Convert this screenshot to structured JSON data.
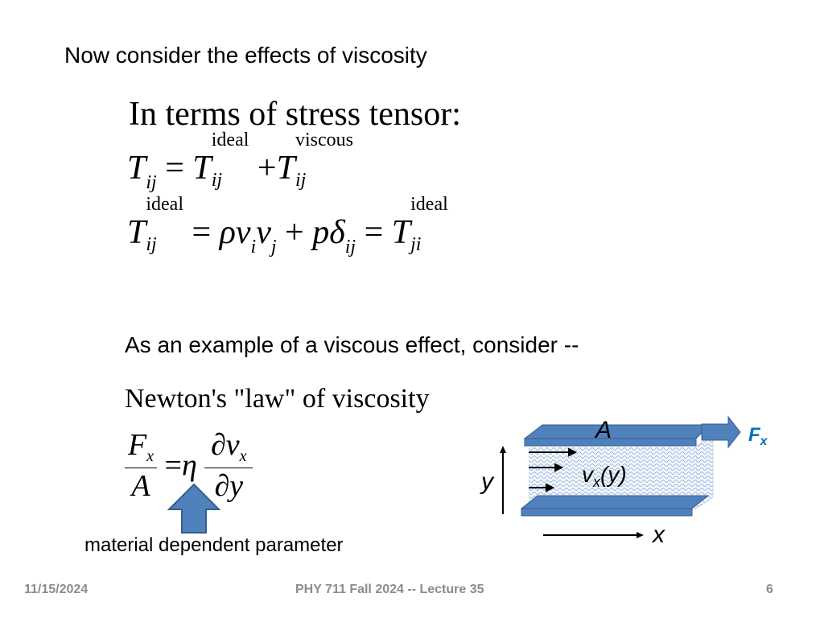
{
  "slide": {
    "title": "Now consider the effects of viscosity",
    "subtitle": "In terms of stress tensor:",
    "eq1": {
      "T": "T",
      "ij": "ij",
      "eq": "=",
      "plus": "+",
      "ideal": "ideal",
      "viscous": "viscous"
    },
    "eq2": {
      "T": "T",
      "ij": "ij",
      "ji": "ji",
      "ideal": "ideal",
      "eq": "=",
      "rho": "ρ",
      "v": "v",
      "i": "i",
      "j": "j",
      "plus": "+",
      "p": "p",
      "delta": "δ"
    },
    "example_text": "As an example of a viscous effect, consider --",
    "law_title": "Newton's \"law\" of viscosity",
    "law": {
      "F": "F",
      "x": "x",
      "A": "A",
      "eq": "=",
      "eta": "η",
      "dv": "∂v",
      "dy": "∂y"
    },
    "arrow_label": "material dependent parameter",
    "diagram": {
      "A": "A",
      "F": "F",
      "Fsub": "x",
      "v": "v",
      "vsub": "x",
      "vy": "(y)",
      "y": "y",
      "x": "x"
    }
  },
  "colors": {
    "plate": "#4f81bd",
    "plate_dark": "#385d8a",
    "force_label": "#0070c0",
    "fluid": "#9ab7dd",
    "footer": "#8c8c8c"
  },
  "footer": {
    "date": "11/15/2024",
    "course": "PHY 711  Fall 2024 -- Lecture 35",
    "page": "6"
  }
}
